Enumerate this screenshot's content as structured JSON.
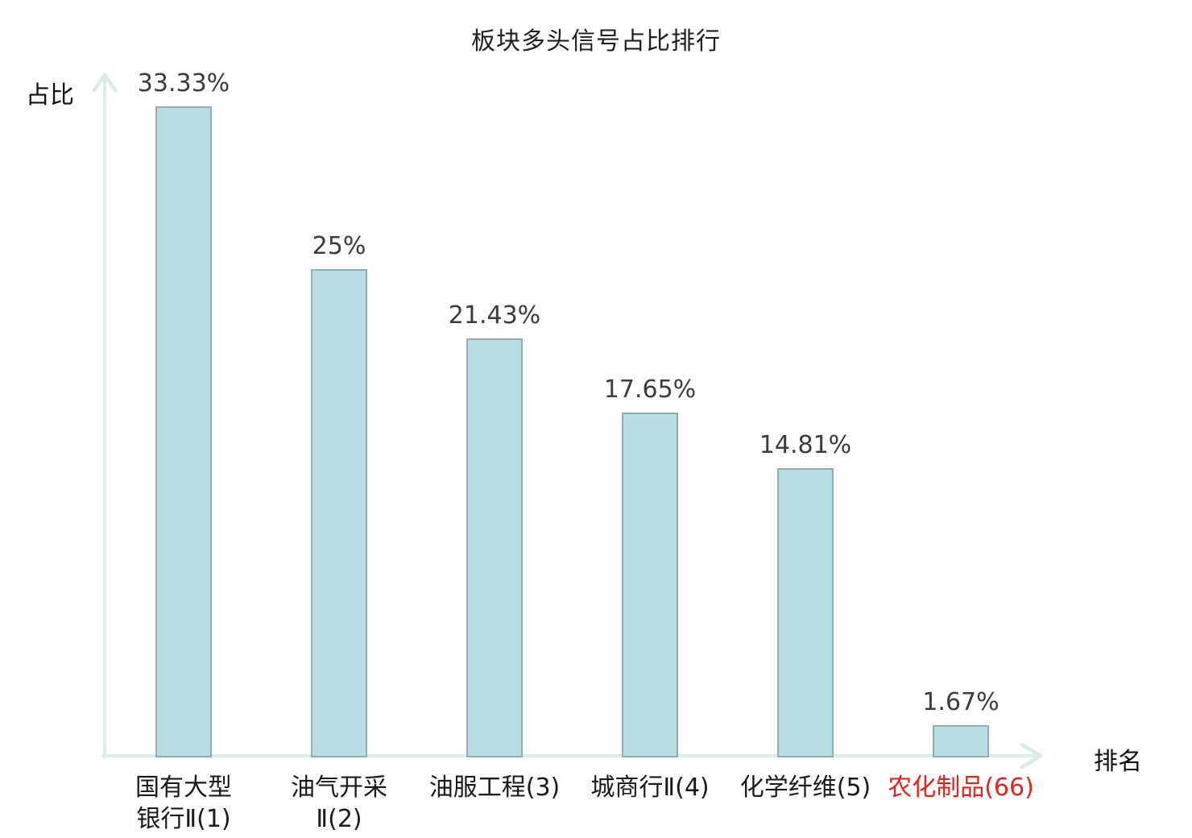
{
  "page": {
    "title": "板块多头信号占比排行"
  },
  "axes": {
    "y_label": "占比",
    "x_label": "排名"
  },
  "colors": {
    "bar_fill": "#b8dee2",
    "bar_border": "#8fafb4",
    "axis_line": "#dceceb",
    "value_label": "#3c3c3c",
    "category_label": "#1a1a1a",
    "highlight_red": "#e0251c",
    "title_text": "#1f1f1f"
  },
  "chart_data": {
    "type": "bar",
    "title": "板块多头信号占比排行",
    "xlabel": "排名",
    "ylabel": "占比",
    "categories": [
      "国有大型银行Ⅱ(1)",
      "油气开采Ⅱ(2)",
      "油服工程(3)",
      "城商行Ⅱ(4)",
      "化学纤维(5)",
      "农化制品(66)"
    ],
    "category_lines": [
      [
        "国有大型",
        "银行Ⅱ(1)"
      ],
      [
        "油气开采",
        "Ⅱ(2)"
      ],
      [
        "油服工程(3)"
      ],
      [
        "城商行Ⅱ(4)"
      ],
      [
        "化学纤维(5)"
      ],
      [
        "农化制品(66)"
      ]
    ],
    "values": [
      33.33,
      25,
      21.43,
      17.65,
      14.81,
      1.67
    ],
    "value_labels": [
      "33.33%",
      "25%",
      "21.43%",
      "17.65%",
      "14.81%",
      "1.67%"
    ],
    "highlighted_category_index": 5,
    "ranks": [
      1,
      2,
      3,
      4,
      5,
      66
    ],
    "ylim": [
      0,
      35
    ],
    "grid": false,
    "legend": null
  }
}
